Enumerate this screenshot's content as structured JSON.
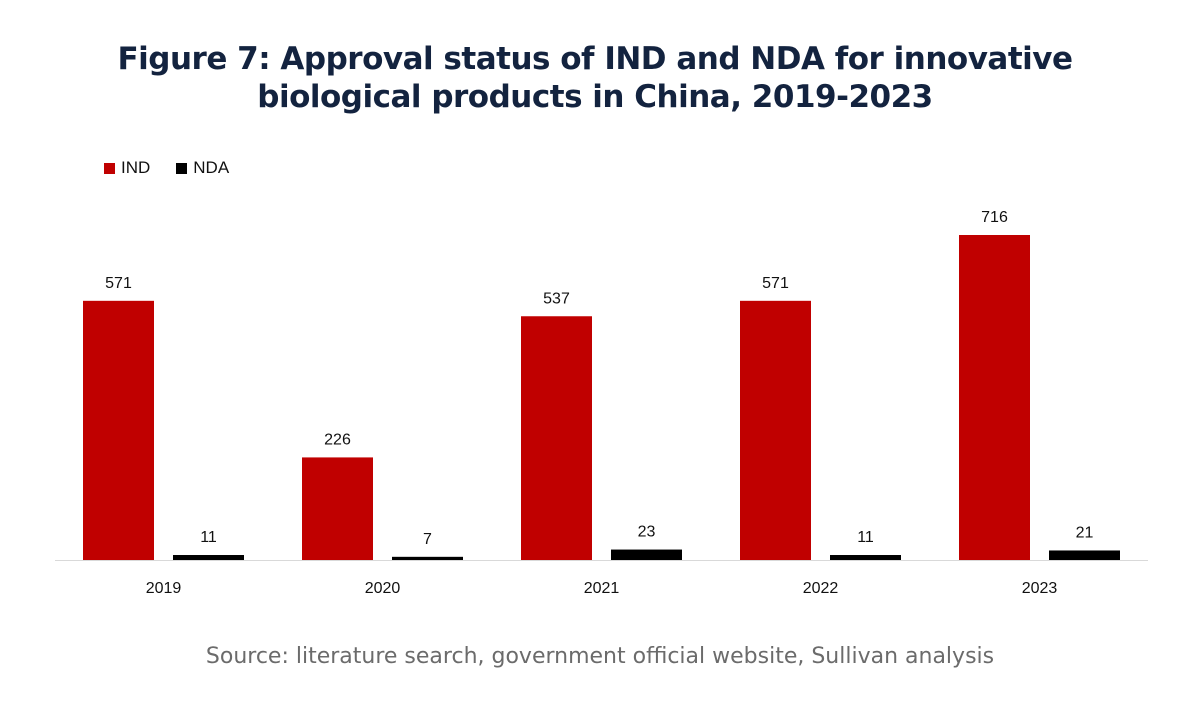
{
  "chart_data": {
    "type": "bar",
    "title": "Figure 7: Approval status of IND and NDA for innovative biological products in China, 2019-2023",
    "title_lines": [
      "Figure 7: Approval status of IND and NDA for innovative",
      "biological products in China, 2019-2023"
    ],
    "categories": [
      "2019",
      "2020",
      "2021",
      "2022",
      "2023"
    ],
    "series": [
      {
        "name": "IND",
        "values": [
          571,
          226,
          537,
          571,
          716
        ],
        "color": "#c00000"
      },
      {
        "name": "NDA",
        "values": [
          11,
          7,
          23,
          11,
          21
        ],
        "color": "#000000"
      }
    ],
    "xlabel": "",
    "ylabel": "",
    "ylim": [
      0,
      716
    ],
    "grid": false,
    "data_labels": true,
    "legend_position": "top-left"
  },
  "source": "Source: literature search, government official website, Sullivan analysis"
}
